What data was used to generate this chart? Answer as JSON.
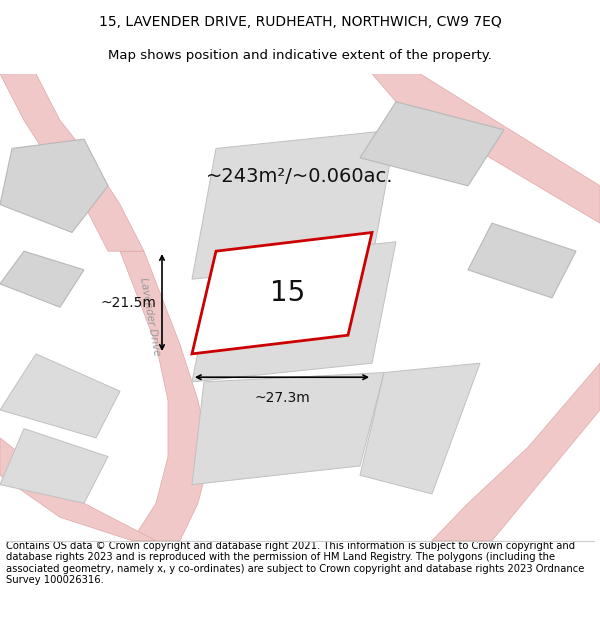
{
  "title_line1": "15, LAVENDER DRIVE, RUDHEATH, NORTHWICH, CW9 7EQ",
  "title_line2": "Map shows position and indicative extent of the property.",
  "footer_text": "Contains OS data © Crown copyright and database right 2021. This information is subject to Crown copyright and database rights 2023 and is reproduced with the permission of HM Land Registry. The polygons (including the associated geometry, namely x, y co-ordinates) are subject to Crown copyright and database rights 2023 Ordnance Survey 100026316.",
  "area_label": "~243m²/~0.060ac.",
  "number_label": "15",
  "width_label": "~27.3m",
  "height_label": "~21.5m",
  "red_color": "#cc0000",
  "road_color": "#f0c8c8",
  "road_edge": "#e0a8a8",
  "building_color": "#d4d4d4",
  "building_edge": "#b8b8b8",
  "parcel_color": "#dcdcdc",
  "parcel_edge": "#c0c0c0",
  "map_bg": "#f8f4f4",
  "lavender_drive_label": "Lavender Drive",
  "title_fontsize": 10,
  "subtitle_fontsize": 9.5,
  "footer_fontsize": 7.2,
  "area_fontsize": 14,
  "number_fontsize": 20,
  "dim_fontsize": 10
}
